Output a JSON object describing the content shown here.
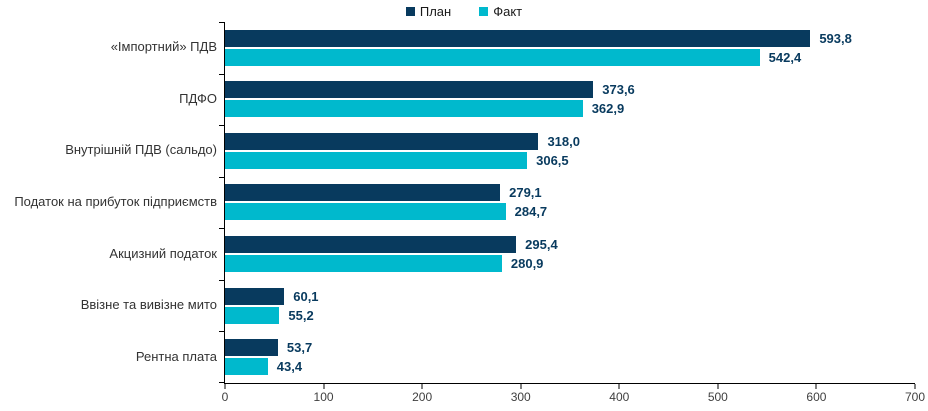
{
  "chart_data": {
    "type": "bar",
    "orientation": "horizontal",
    "title": "",
    "xlabel": "",
    "ylabel": "",
    "grid": false,
    "legend_position": "top",
    "xlim": [
      0,
      700
    ],
    "x_ticks": [
      "0",
      "100",
      "200",
      "300",
      "400",
      "500",
      "600",
      "700"
    ],
    "categories": [
      "«Імпортний» ПДВ",
      "ПДФО",
      "Внутрішній ПДВ (сальдо)",
      "Податок на прибуток підприємств",
      "Акцизний податок",
      "Ввізне та вивізне мито",
      "Рентна плата"
    ],
    "series": [
      {
        "key": "plan",
        "name": "План",
        "color": "#083A5E",
        "values": [
          593.8,
          373.6,
          318.0,
          279.1,
          295.4,
          60.1,
          53.7
        ],
        "value_labels": [
          "593,8",
          "373,6",
          "318,0",
          "279,1",
          "295,4",
          "60,1",
          "53,7"
        ]
      },
      {
        "key": "fact",
        "name": "Факт",
        "color": "#00B9CD",
        "values": [
          542.4,
          362.9,
          306.5,
          284.7,
          280.9,
          55.2,
          43.4
        ],
        "value_labels": [
          "542,4",
          "362,9",
          "306,5",
          "284,7",
          "280,9",
          "55,2",
          "43,4"
        ]
      }
    ],
    "colors": {
      "value_label": "#083A5E",
      "category_label": "#333333",
      "axis": "#000000",
      "tick_label": "#404040"
    }
  }
}
